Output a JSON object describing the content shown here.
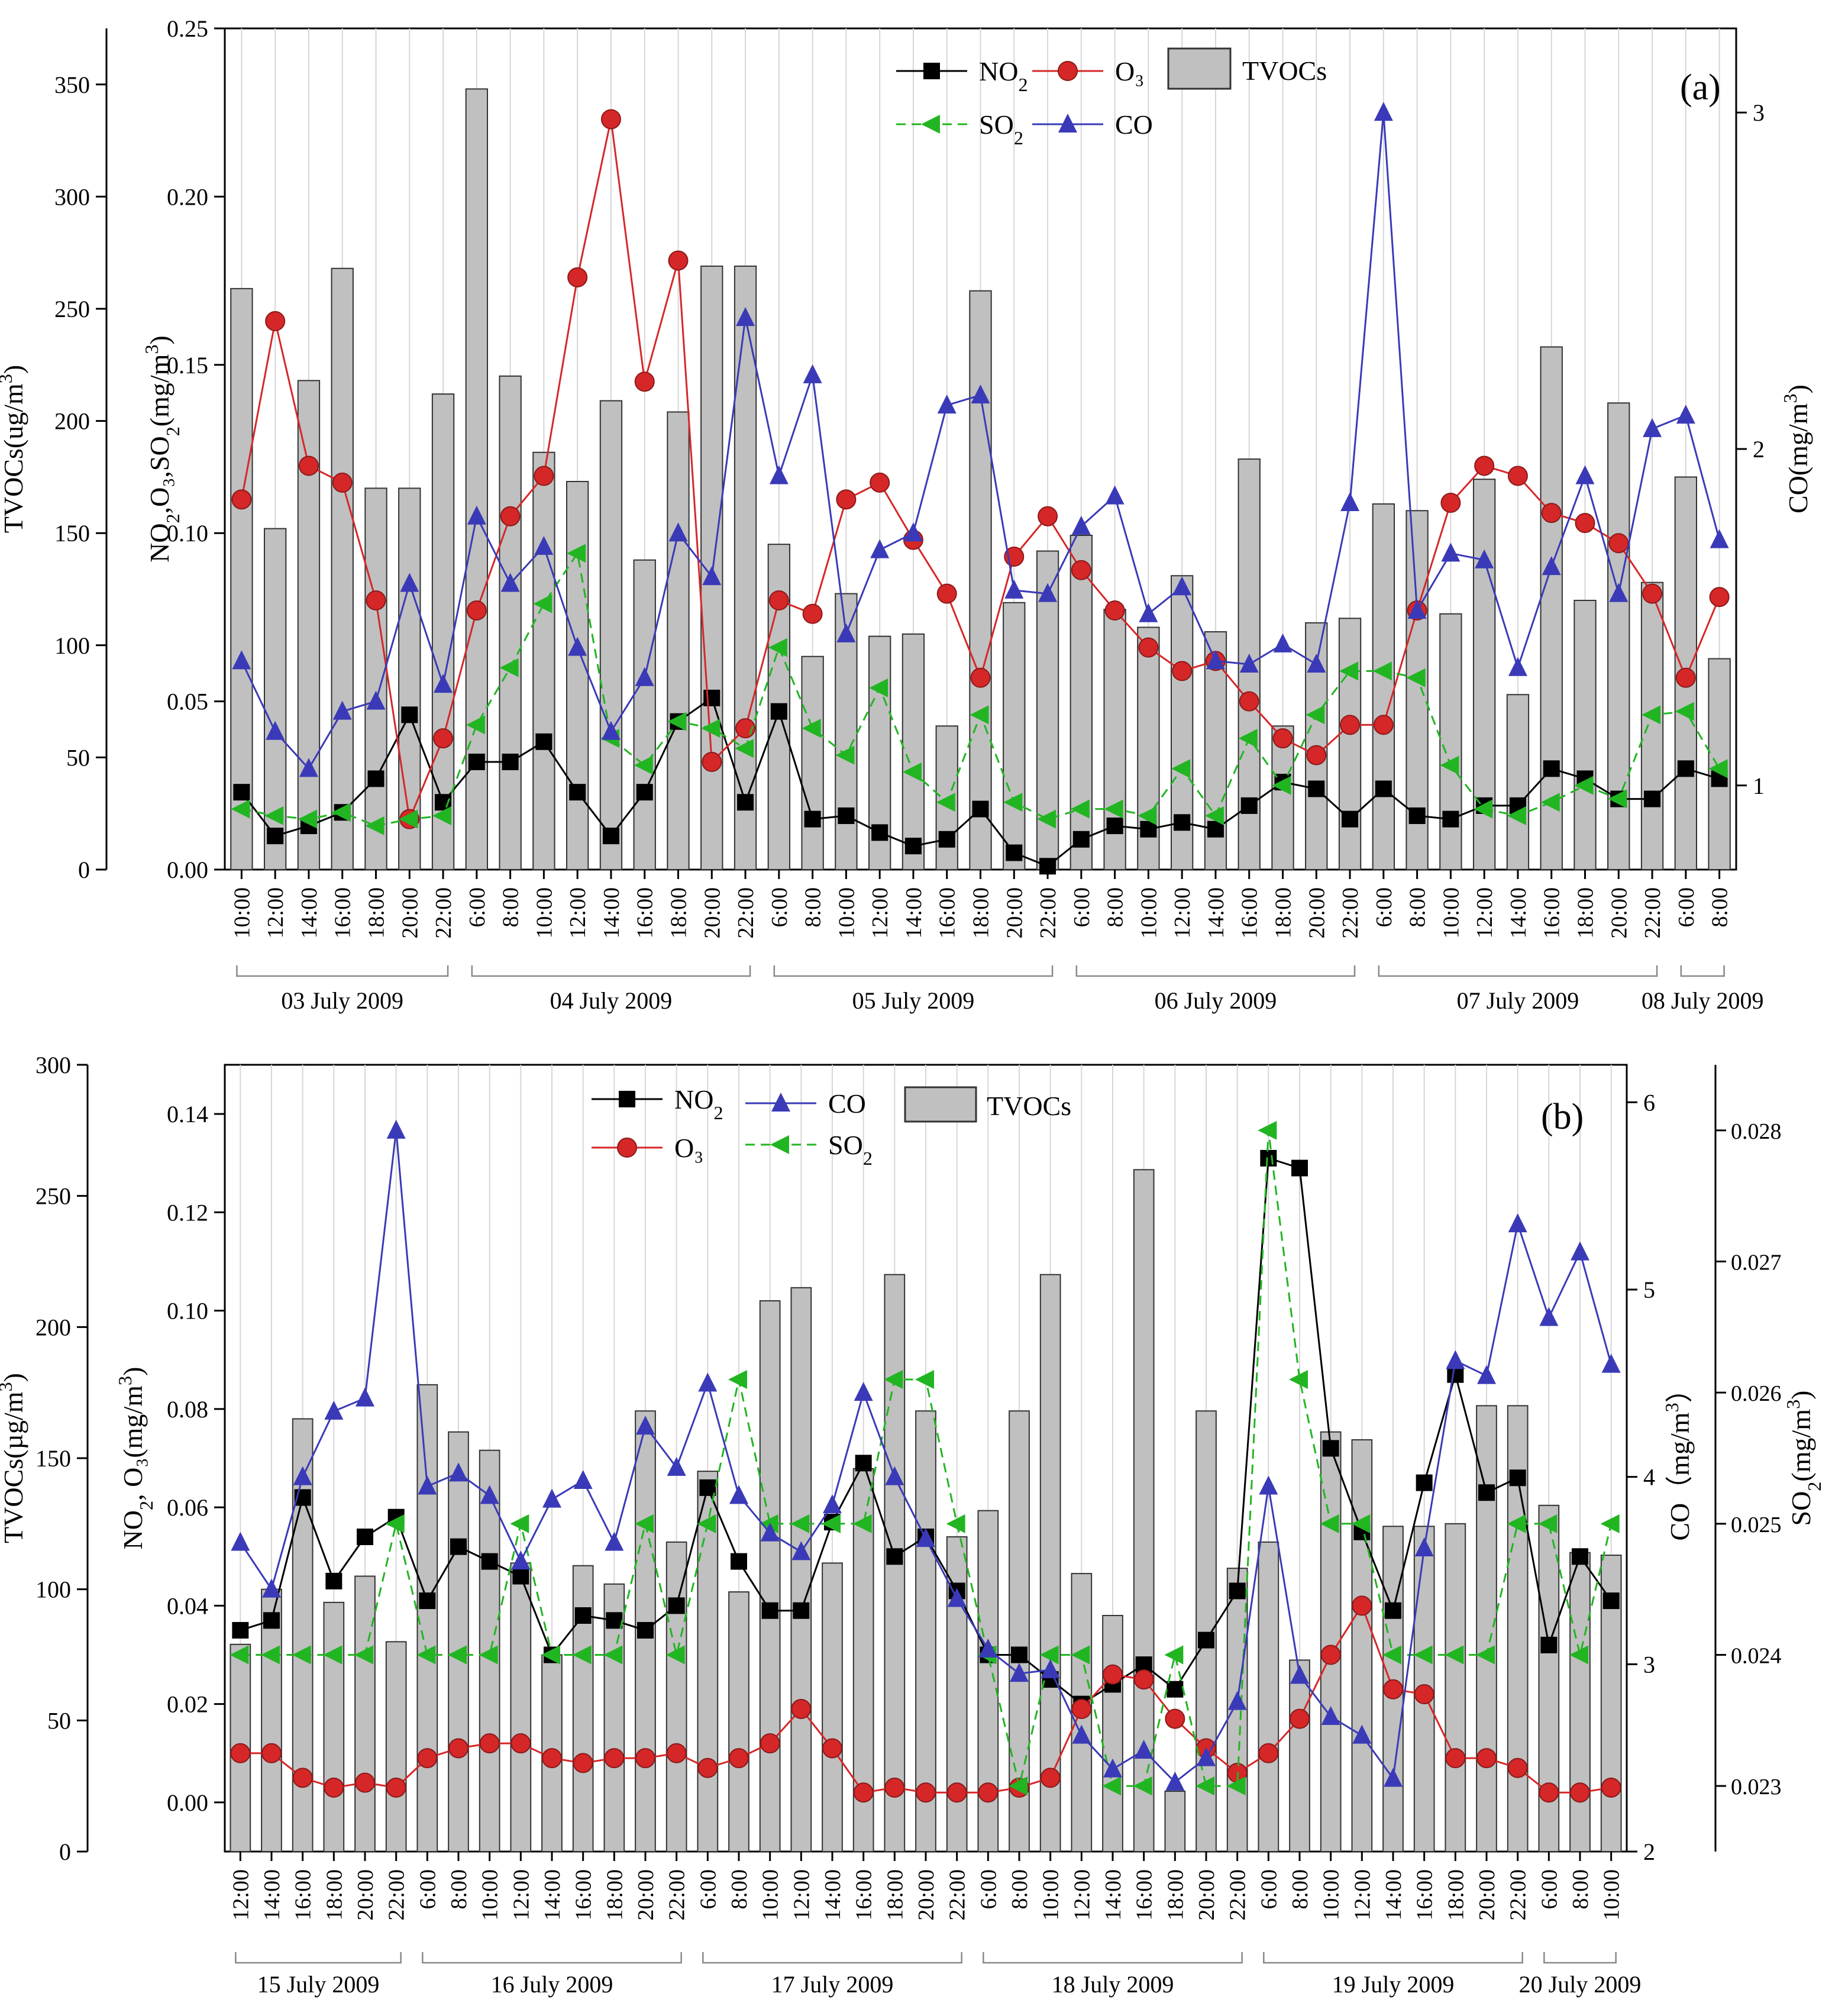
{
  "colors": {
    "no2": "#000000",
    "o3": "#d62728",
    "so2": "#22b522",
    "co": "#3a3ab8",
    "tvocs_fill": "#c0c0c0",
    "tvocs_stroke": "#333333",
    "grid": "#d6d6d6"
  },
  "chart_data": [
    {
      "type": "bar",
      "panel_label": "(a)",
      "axes": {
        "tvocs": {
          "label": "TVOCs(ug/m³)",
          "range": [
            0,
            375
          ],
          "ticks": [
            0,
            50,
            100,
            150,
            200,
            250,
            300,
            350
          ]
        },
        "gas": {
          "label": "NO₂,O₃,SO₂(mg/m³)",
          "range": [
            0,
            0.25
          ],
          "ticks": [
            "0.00",
            "0.05",
            "0.10",
            "0.15",
            "0.20",
            "0.25"
          ]
        },
        "co": {
          "label": "CO(mg/m³)",
          "range": [
            0.75,
            3.25
          ],
          "ticks": [
            1,
            2,
            3
          ]
        }
      },
      "categories": [
        "10:00",
        "12:00",
        "14:00",
        "16:00",
        "18:00",
        "20:00",
        "22:00",
        "6:00",
        "8:00",
        "10:00",
        "12:00",
        "14:00",
        "16:00",
        "18:00",
        "20:00",
        "22:00",
        "6:00",
        "8:00",
        "10:00",
        "12:00",
        "14:00",
        "16:00",
        "18:00",
        "20:00",
        "22:00",
        "6:00",
        "8:00",
        "10:00",
        "12:00",
        "14:00",
        "16:00",
        "18:00",
        "20:00",
        "22:00",
        "6:00",
        "8:00",
        "10:00",
        "12:00",
        "14:00",
        "16:00",
        "18:00",
        "20:00",
        "22:00",
        "6:00",
        "8:00"
      ],
      "dates": [
        {
          "label": "03 July 2009",
          "start": 0,
          "end": 6
        },
        {
          "label": "04 July 2009",
          "start": 7,
          "end": 15
        },
        {
          "label": "05 July 2009",
          "start": 16,
          "end": 24
        },
        {
          "label": "06 July 2009",
          "start": 25,
          "end": 33
        },
        {
          "label": "07 July 2009",
          "start": 34,
          "end": 42
        },
        {
          "label": "08 July 2009",
          "start": 43,
          "end": 44
        }
      ],
      "series": [
        {
          "name": "TVOCs",
          "kind": "bar",
          "axis": "tvocs",
          "values": [
            259,
            152,
            218,
            268,
            170,
            170,
            212,
            348,
            220,
            186,
            173,
            209,
            138,
            204,
            269,
            269,
            145,
            95,
            123,
            104,
            105,
            64,
            258,
            119,
            142,
            149,
            116,
            108,
            131,
            106,
            183,
            64,
            110,
            112,
            163,
            160,
            114,
            174,
            78,
            233,
            120,
            208,
            128,
            175,
            94
          ]
        },
        {
          "name": "NO₂",
          "kind": "line",
          "axis": "gas",
          "marker": "square",
          "values": [
            0.023,
            0.01,
            0.013,
            0.017,
            0.027,
            0.046,
            0.02,
            0.032,
            0.032,
            0.038,
            0.023,
            0.01,
            0.023,
            0.044,
            0.051,
            0.02,
            0.047,
            0.015,
            0.016,
            0.011,
            0.007,
            0.009,
            0.018,
            0.005,
            0.001,
            0.009,
            0.013,
            0.012,
            0.014,
            0.012,
            0.019,
            0.026,
            0.024,
            0.015,
            0.024,
            0.016,
            0.015,
            0.019,
            0.019,
            0.03,
            0.027,
            0.021,
            0.021,
            0.03,
            0.027
          ]
        },
        {
          "name": "O₃",
          "kind": "line",
          "axis": "gas",
          "marker": "circle",
          "values": [
            0.11,
            0.163,
            0.12,
            0.115,
            0.08,
            0.015,
            0.039,
            0.077,
            0.105,
            0.117,
            0.176,
            0.223,
            0.145,
            0.181,
            0.032,
            0.042,
            0.08,
            0.076,
            0.11,
            0.115,
            0.098,
            0.082,
            0.057,
            0.093,
            0.105,
            0.089,
            0.077,
            0.066,
            0.059,
            0.062,
            0.05,
            0.039,
            0.034,
            0.043,
            0.043,
            0.077,
            0.109,
            0.12,
            0.117,
            0.106,
            0.103,
            0.097,
            0.082,
            0.057,
            0.081
          ]
        },
        {
          "name": "SO₂",
          "kind": "line",
          "axis": "gas",
          "marker": "left-triangle",
          "values": [
            0.018,
            0.016,
            0.015,
            0.017,
            0.013,
            0.015,
            0.016,
            0.043,
            0.06,
            0.079,
            0.094,
            0.039,
            0.031,
            0.044,
            0.042,
            0.036,
            0.066,
            0.042,
            0.034,
            0.054,
            0.029,
            0.02,
            0.046,
            0.02,
            0.015,
            0.018,
            0.018,
            0.016,
            0.03,
            0.016,
            0.039,
            0.025,
            0.046,
            0.059,
            0.059,
            0.057,
            0.031,
            0.018,
            0.016,
            0.02,
            0.025,
            0.021,
            0.046,
            0.047,
            0.03
          ]
        },
        {
          "name": "CO",
          "kind": "line",
          "axis": "co",
          "marker": "up-triangle",
          "values": [
            1.37,
            1.16,
            1.05,
            1.22,
            1.25,
            1.6,
            1.3,
            1.8,
            1.6,
            1.71,
            1.41,
            1.16,
            1.32,
            1.75,
            1.62,
            2.39,
            1.92,
            2.22,
            1.45,
            1.7,
            1.75,
            2.13,
            2.16,
            1.58,
            1.57,
            1.77,
            1.86,
            1.51,
            1.59,
            1.37,
            1.36,
            1.42,
            1.36,
            1.84,
            3.0,
            1.52,
            1.69,
            1.67,
            1.35,
            1.65,
            1.92,
            1.57,
            2.06,
            2.1,
            1.73
          ]
        }
      ]
    },
    {
      "type": "bar",
      "panel_label": "(b)",
      "axes": {
        "tvocs": {
          "label": "TVOCs(µg/m³)",
          "range": [
            0,
            300
          ],
          "ticks": [
            0,
            50,
            100,
            150,
            200,
            250,
            300
          ]
        },
        "gas": {
          "label": "NO₂, O₃(mg/m³)",
          "range": [
            -0.01,
            0.15
          ],
          "ticks": [
            "0.00",
            "0.02",
            "0.04",
            "0.06",
            "0.08",
            "0.10",
            "0.12",
            "0.14"
          ]
        },
        "co": {
          "label": "CO（mg/m³）",
          "range": [
            2,
            6.2
          ],
          "ticks": [
            2,
            3,
            4,
            5,
            6
          ]
        },
        "so2": {
          "label": "SO₂(mg/m³)",
          "range": [
            0.0225,
            0.0285
          ],
          "ticks": [
            "0.023",
            "0.024",
            "0.025",
            "0.026",
            "0.027",
            "0.028"
          ]
        }
      },
      "categories": [
        "12:00",
        "14:00",
        "16:00",
        "18:00",
        "20:00",
        "22:00",
        "6:00",
        "8:00",
        "10:00",
        "12:00",
        "14:00",
        "16:00",
        "18:00",
        "20:00",
        "22:00",
        "6:00",
        "8:00",
        "10:00",
        "12:00",
        "14:00",
        "16:00",
        "18:00",
        "20:00",
        "22:00",
        "6:00",
        "8:00",
        "10:00",
        "12:00",
        "14:00",
        "16:00",
        "18:00",
        "20:00",
        "22:00",
        "6:00",
        "8:00",
        "10:00",
        "12:00",
        "14:00",
        "16:00",
        "18:00",
        "20:00",
        "22:00",
        "6:00",
        "8:00",
        "10:00"
      ],
      "dates": [
        {
          "label": "15 July 2009",
          "start": 0,
          "end": 5
        },
        {
          "label": "16 July 2009",
          "start": 6,
          "end": 14
        },
        {
          "label": "17 July 2009",
          "start": 15,
          "end": 23
        },
        {
          "label": "18 July 2009",
          "start": 24,
          "end": 32
        },
        {
          "label": "19 July 2009",
          "start": 33,
          "end": 41
        },
        {
          "label": "20 July 2009",
          "start": 42,
          "end": 44
        }
      ],
      "series": [
        {
          "name": "TVOCs",
          "kind": "bar",
          "axis": "tvocs",
          "values": [
            79,
            100,
            165,
            95,
            105,
            80,
            178,
            160,
            153,
            110,
            75,
            109,
            102,
            168,
            118,
            145,
            99,
            210,
            215,
            110,
            146,
            220,
            168,
            120,
            130,
            168,
            220,
            106,
            90,
            260,
            23,
            168,
            108,
            118,
            73,
            160,
            157,
            124,
            124,
            125,
            170,
            170,
            132,
            114,
            113
          ]
        },
        {
          "name": "NO₂",
          "kind": "line",
          "axis": "gas",
          "marker": "square",
          "values": [
            0.035,
            0.037,
            0.062,
            0.045,
            0.054,
            0.058,
            0.041,
            0.052,
            0.049,
            0.046,
            0.03,
            0.038,
            0.037,
            0.035,
            0.04,
            0.064,
            0.049,
            0.039,
            0.039,
            0.057,
            0.069,
            0.05,
            0.054,
            0.043,
            0.03,
            0.03,
            0.025,
            0.02,
            0.024,
            0.028,
            0.023,
            0.033,
            0.043,
            0.131,
            0.129,
            0.072,
            0.055,
            0.039,
            0.065,
            0.087,
            0.063,
            0.066,
            0.032,
            0.05,
            0.041
          ]
        },
        {
          "name": "O₃",
          "kind": "line",
          "axis": "gas",
          "marker": "circle",
          "values": [
            0.01,
            0.01,
            0.005,
            0.003,
            0.004,
            0.003,
            0.009,
            0.011,
            0.012,
            0.012,
            0.009,
            0.008,
            0.009,
            0.009,
            0.01,
            0.007,
            0.009,
            0.012,
            0.019,
            0.011,
            0.002,
            0.003,
            0.002,
            0.002,
            0.002,
            0.003,
            0.005,
            0.019,
            0.026,
            0.025,
            0.017,
            0.011,
            0.006,
            0.01,
            0.017,
            0.03,
            0.04,
            0.023,
            0.022,
            0.009,
            0.009,
            0.007,
            0.002,
            0.002,
            0.003
          ]
        },
        {
          "name": "SO₂",
          "kind": "line",
          "axis": "so2",
          "marker": "left-triangle",
          "values": [
            0.024,
            0.024,
            0.024,
            0.024,
            0.024,
            0.025,
            0.024,
            0.024,
            0.024,
            0.025,
            0.024,
            0.024,
            0.024,
            0.025,
            0.024,
            0.025,
            0.0261,
            0.025,
            0.025,
            0.025,
            0.025,
            0.0261,
            0.0261,
            0.025,
            0.024,
            0.023,
            0.024,
            0.024,
            0.023,
            0.023,
            0.024,
            0.023,
            0.023,
            0.028,
            0.0261,
            0.025,
            0.025,
            0.024,
            0.024,
            0.024,
            0.024,
            0.025,
            0.025,
            0.024,
            0.025
          ]
        },
        {
          "name": "CO",
          "kind": "line",
          "axis": "co",
          "marker": "up-triangle",
          "values": [
            3.65,
            3.4,
            4.0,
            4.35,
            4.42,
            5.85,
            3.95,
            4.02,
            3.9,
            3.55,
            3.88,
            3.98,
            3.65,
            4.27,
            4.05,
            4.5,
            3.9,
            3.7,
            3.6,
            3.85,
            4.45,
            4.0,
            3.67,
            3.35,
            3.08,
            2.95,
            2.97,
            2.62,
            2.44,
            2.54,
            2.37,
            2.5,
            2.8,
            3.95,
            2.94,
            2.72,
            2.62,
            2.39,
            3.62,
            4.62,
            4.54,
            5.35,
            4.85,
            5.2,
            4.6
          ]
        }
      ]
    }
  ]
}
